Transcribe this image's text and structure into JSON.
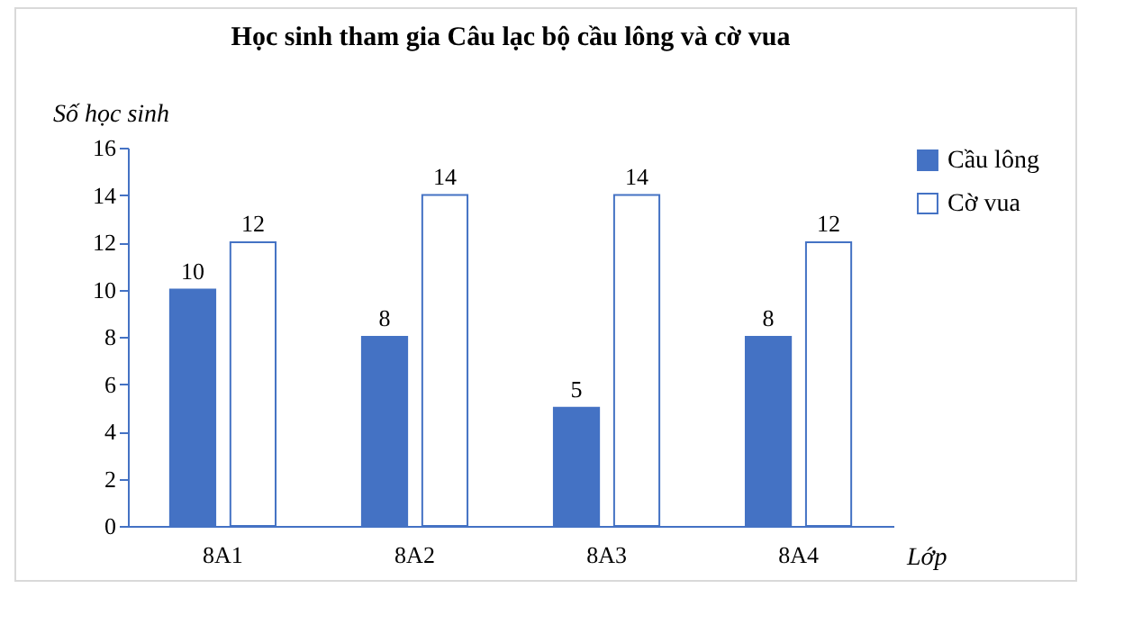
{
  "chart_data": {
    "type": "bar",
    "title": "Học sinh tham gia Câu lạc bộ cầu lông và cờ vua",
    "xlabel": "Lớp",
    "ylabel": "Số học sinh",
    "categories": [
      "8A1",
      "8A2",
      "8A3",
      "8A4"
    ],
    "series": [
      {
        "name": "Cầu lông",
        "color": "#4472c4",
        "values": [
          10,
          8,
          5,
          8
        ]
      },
      {
        "name": "Cờ vua",
        "color": "#ffffff",
        "values": [
          12,
          14,
          14,
          12
        ]
      }
    ],
    "ylim": [
      0,
      16
    ],
    "yticks": [
      0,
      2,
      4,
      6,
      8,
      10,
      12,
      14,
      16
    ],
    "grid": false,
    "legend": "right",
    "data_labels": true
  }
}
